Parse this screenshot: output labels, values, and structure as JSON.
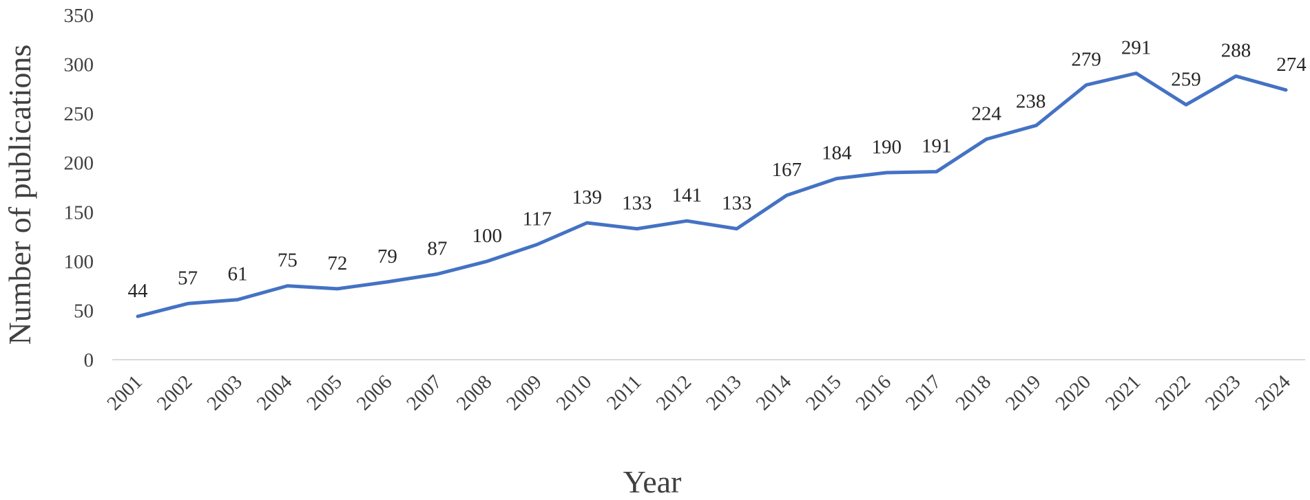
{
  "chart_data": {
    "type": "line",
    "title": "",
    "xlabel": "Year",
    "ylabel": "Number of publications",
    "ylim": [
      0,
      350
    ],
    "yticks": [
      0,
      50,
      100,
      150,
      200,
      250,
      300,
      350
    ],
    "grid": false,
    "legend": "none",
    "categories": [
      "2001",
      "2002",
      "2003",
      "2004",
      "2005",
      "2006",
      "2007",
      "2008",
      "2009",
      "2010",
      "2011",
      "2012",
      "2013",
      "2014",
      "2015",
      "2016",
      "2017",
      "2018",
      "2019",
      "2020",
      "2021",
      "2022",
      "2023",
      "2024"
    ],
    "series": [
      {
        "values": [
          44,
          57,
          61,
          75,
          72,
          79,
          87,
          100,
          117,
          139,
          133,
          141,
          133,
          167,
          184,
          190,
          191,
          224,
          238,
          279,
          291,
          259,
          288,
          274
        ],
        "color": "#4472C4"
      }
    ]
  }
}
